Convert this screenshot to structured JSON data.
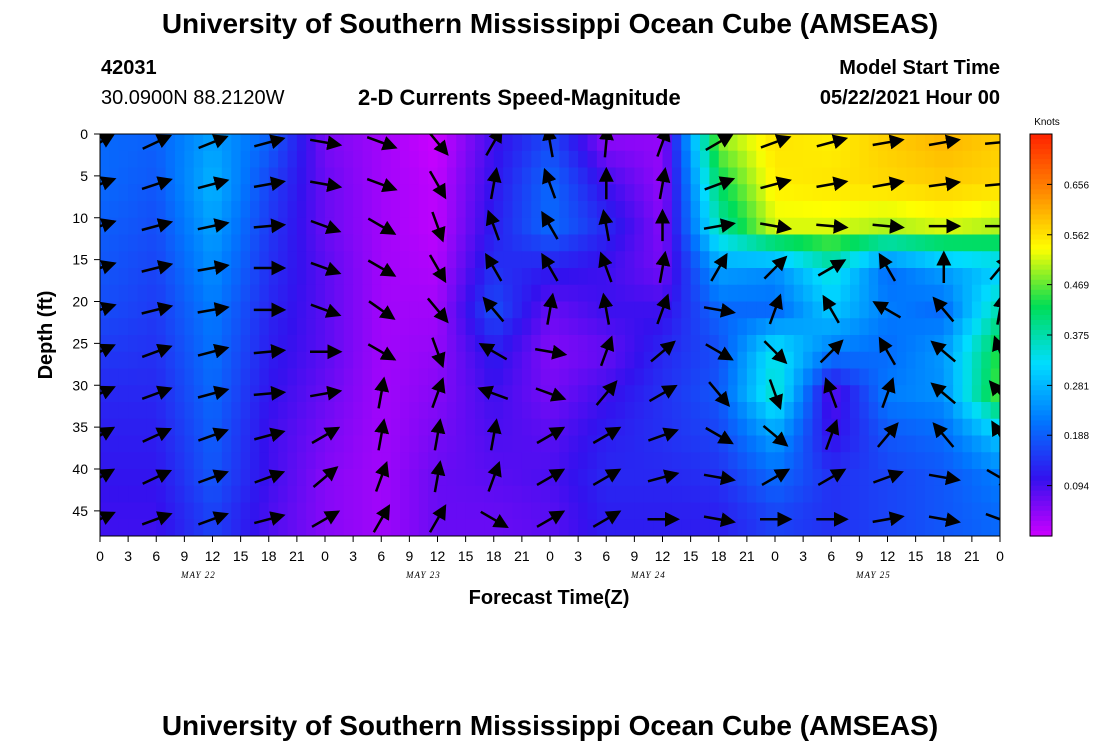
{
  "page": {
    "title_top": "University of Southern Mississippi Ocean Cube (AMSEAS)",
    "title_bottom": "University of Southern Mississippi Ocean Cube (AMSEAS)",
    "station_id": "42031",
    "station_coords": "30.0900N  88.2120W",
    "plot_title": "2-D Currents Speed-Magnitude",
    "model_start_label": "Model Start Time",
    "model_start_value": "05/22/2021 Hour 00"
  },
  "colors": {
    "palette": [
      "#cc00ff",
      "#3311ee",
      "#0077ff",
      "#00ddff",
      "#00dd55",
      "#ffff00",
      "#ff8800",
      "#ff2200"
    ]
  },
  "chart_data": {
    "type": "heatmap",
    "title": "2-D Currents Speed-Magnitude",
    "xlabel": "Forecast Time(Z)",
    "ylabel": "Depth (ft)",
    "x_tick_labels": [
      "0",
      "3",
      "6",
      "9",
      "12",
      "15",
      "18",
      "21",
      "0",
      "3",
      "6",
      "9",
      "12",
      "15",
      "18",
      "21",
      "0",
      "3",
      "6",
      "9",
      "12",
      "15",
      "18",
      "21",
      "0",
      "3",
      "6",
      "9",
      "12",
      "15",
      "18",
      "21",
      "0"
    ],
    "day_labels": [
      "MAY 22",
      "MAY 23",
      "MAY 24",
      "MAY 25"
    ],
    "y_ticks": [
      0,
      5,
      10,
      15,
      20,
      25,
      30,
      35,
      40,
      45
    ],
    "ylim": [
      0,
      48
    ],
    "xlim_hours": [
      0,
      96
    ],
    "colorbar": {
      "title": "Knots",
      "ticks": [
        "0.656",
        "0.562",
        "0.469",
        "0.375",
        "0.281",
        "0.188",
        "0.094"
      ],
      "range": [
        0,
        0.75
      ]
    },
    "rows_depth_ft": [
      1,
      6,
      11,
      16,
      21,
      26,
      31,
      36,
      41,
      46
    ],
    "cols_hour": [
      0,
      6,
      12,
      18,
      24,
      30,
      36,
      42,
      48,
      54,
      60,
      66,
      72,
      78,
      84,
      90,
      96
    ],
    "speed_knots": [
      [
        0.2,
        0.19,
        0.26,
        0.19,
        0.06,
        0.03,
        0.0,
        0.1,
        0.17,
        0.05,
        0.04,
        0.48,
        0.56,
        0.55,
        0.58,
        0.6,
        0.58
      ],
      [
        0.2,
        0.18,
        0.28,
        0.16,
        0.07,
        0.03,
        0.01,
        0.11,
        0.2,
        0.1,
        0.04,
        0.42,
        0.55,
        0.56,
        0.57,
        0.58,
        0.57
      ],
      [
        0.19,
        0.17,
        0.26,
        0.15,
        0.07,
        0.03,
        0.01,
        0.12,
        0.2,
        0.13,
        0.05,
        0.37,
        0.52,
        0.52,
        0.5,
        0.52,
        0.5
      ],
      [
        0.18,
        0.16,
        0.24,
        0.14,
        0.08,
        0.03,
        0.02,
        0.14,
        0.12,
        0.1,
        0.06,
        0.26,
        0.24,
        0.35,
        0.2,
        0.26,
        0.3
      ],
      [
        0.17,
        0.15,
        0.22,
        0.13,
        0.08,
        0.03,
        0.03,
        0.17,
        0.07,
        0.1,
        0.1,
        0.2,
        0.2,
        0.3,
        0.22,
        0.2,
        0.38
      ],
      [
        0.15,
        0.14,
        0.21,
        0.12,
        0.08,
        0.03,
        0.04,
        0.12,
        0.05,
        0.07,
        0.13,
        0.17,
        0.34,
        0.22,
        0.2,
        0.25,
        0.45
      ],
      [
        0.13,
        0.13,
        0.2,
        0.11,
        0.07,
        0.03,
        0.05,
        0.1,
        0.06,
        0.1,
        0.14,
        0.18,
        0.36,
        0.08,
        0.22,
        0.24,
        0.47
      ],
      [
        0.12,
        0.12,
        0.19,
        0.1,
        0.06,
        0.03,
        0.06,
        0.09,
        0.08,
        0.12,
        0.14,
        0.16,
        0.26,
        0.1,
        0.18,
        0.2,
        0.3
      ],
      [
        0.11,
        0.11,
        0.18,
        0.1,
        0.05,
        0.03,
        0.07,
        0.08,
        0.09,
        0.13,
        0.13,
        0.14,
        0.2,
        0.14,
        0.16,
        0.18,
        0.22
      ],
      [
        0.1,
        0.1,
        0.16,
        0.09,
        0.05,
        0.03,
        0.07,
        0.07,
        0.08,
        0.12,
        0.12,
        0.12,
        0.16,
        0.14,
        0.16,
        0.18,
        0.2
      ]
    ],
    "vector_direction_deg": [
      [
        60,
        65,
        68,
        75,
        100,
        110,
        140,
        30,
        350,
        5,
        20,
        60,
        70,
        75,
        80,
        80,
        85
      ],
      [
        70,
        72,
        75,
        80,
        100,
        110,
        150,
        10,
        340,
        0,
        10,
        70,
        75,
        80,
        80,
        82,
        85
      ],
      [
        72,
        75,
        78,
        85,
        110,
        120,
        160,
        340,
        330,
        350,
        0,
        80,
        100,
        95,
        95,
        90,
        90
      ],
      [
        72,
        76,
        80,
        90,
        110,
        120,
        150,
        330,
        330,
        340,
        10,
        30,
        45,
        60,
        330,
        360,
        40
      ],
      [
        72,
        76,
        80,
        90,
        110,
        125,
        140,
        320,
        10,
        350,
        20,
        100,
        20,
        330,
        300,
        320,
        10
      ],
      [
        65,
        70,
        75,
        85,
        90,
        120,
        160,
        300,
        100,
        20,
        50,
        120,
        135,
        45,
        330,
        310,
        340
      ],
      [
        65,
        70,
        75,
        85,
        80,
        10,
        20,
        290,
        110,
        40,
        60,
        140,
        160,
        340,
        20,
        310,
        320
      ],
      [
        60,
        65,
        70,
        75,
        60,
        10,
        10,
        10,
        60,
        60,
        70,
        120,
        130,
        20,
        40,
        320,
        330
      ],
      [
        60,
        65,
        70,
        70,
        50,
        20,
        10,
        20,
        60,
        60,
        75,
        100,
        60,
        60,
        70,
        100,
        120
      ],
      [
        65,
        70,
        70,
        75,
        60,
        30,
        30,
        120,
        60,
        60,
        90,
        100,
        90,
        90,
        80,
        100,
        110
      ]
    ]
  }
}
